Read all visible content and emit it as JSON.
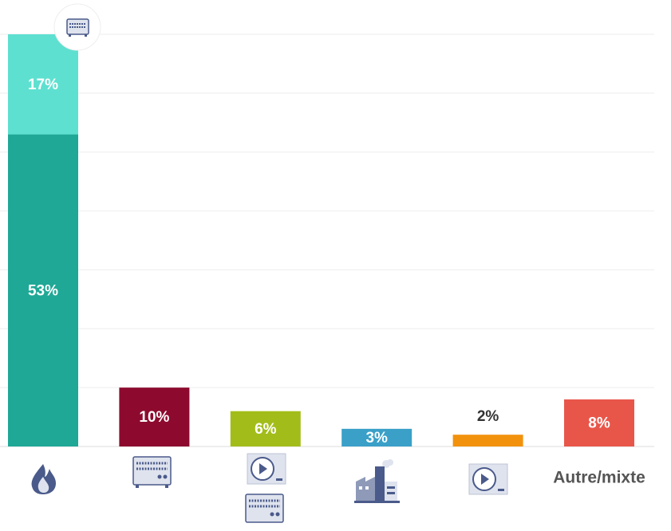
{
  "chart_data": {
    "type": "bar",
    "stacked": true,
    "categories": [
      null,
      null,
      null,
      null,
      null,
      "Autre/mixte"
    ],
    "series": [
      {
        "colors": [
          "#1fa896",
          "#8d0a2e",
          "#a2bd1a",
          "#3aa0c8",
          "#f2920c",
          "#e8564a"
        ],
        "values": [
          53,
          10,
          6,
          3,
          2,
          8
        ],
        "value_labels": [
          "53%",
          "10%",
          "6%",
          "3%",
          "2%",
          "8%"
        ]
      },
      {
        "colors": [
          "#5ee0d0",
          null,
          null,
          null,
          null,
          null
        ],
        "values": [
          17,
          null,
          null,
          null,
          null,
          null
        ],
        "value_labels": [
          "17%",
          null,
          null,
          null,
          null,
          null
        ]
      }
    ],
    "ylim": [
      0,
      70
    ],
    "yticks": [
      0,
      10,
      20,
      30,
      40,
      50,
      60,
      70
    ],
    "grid": true
  }
}
